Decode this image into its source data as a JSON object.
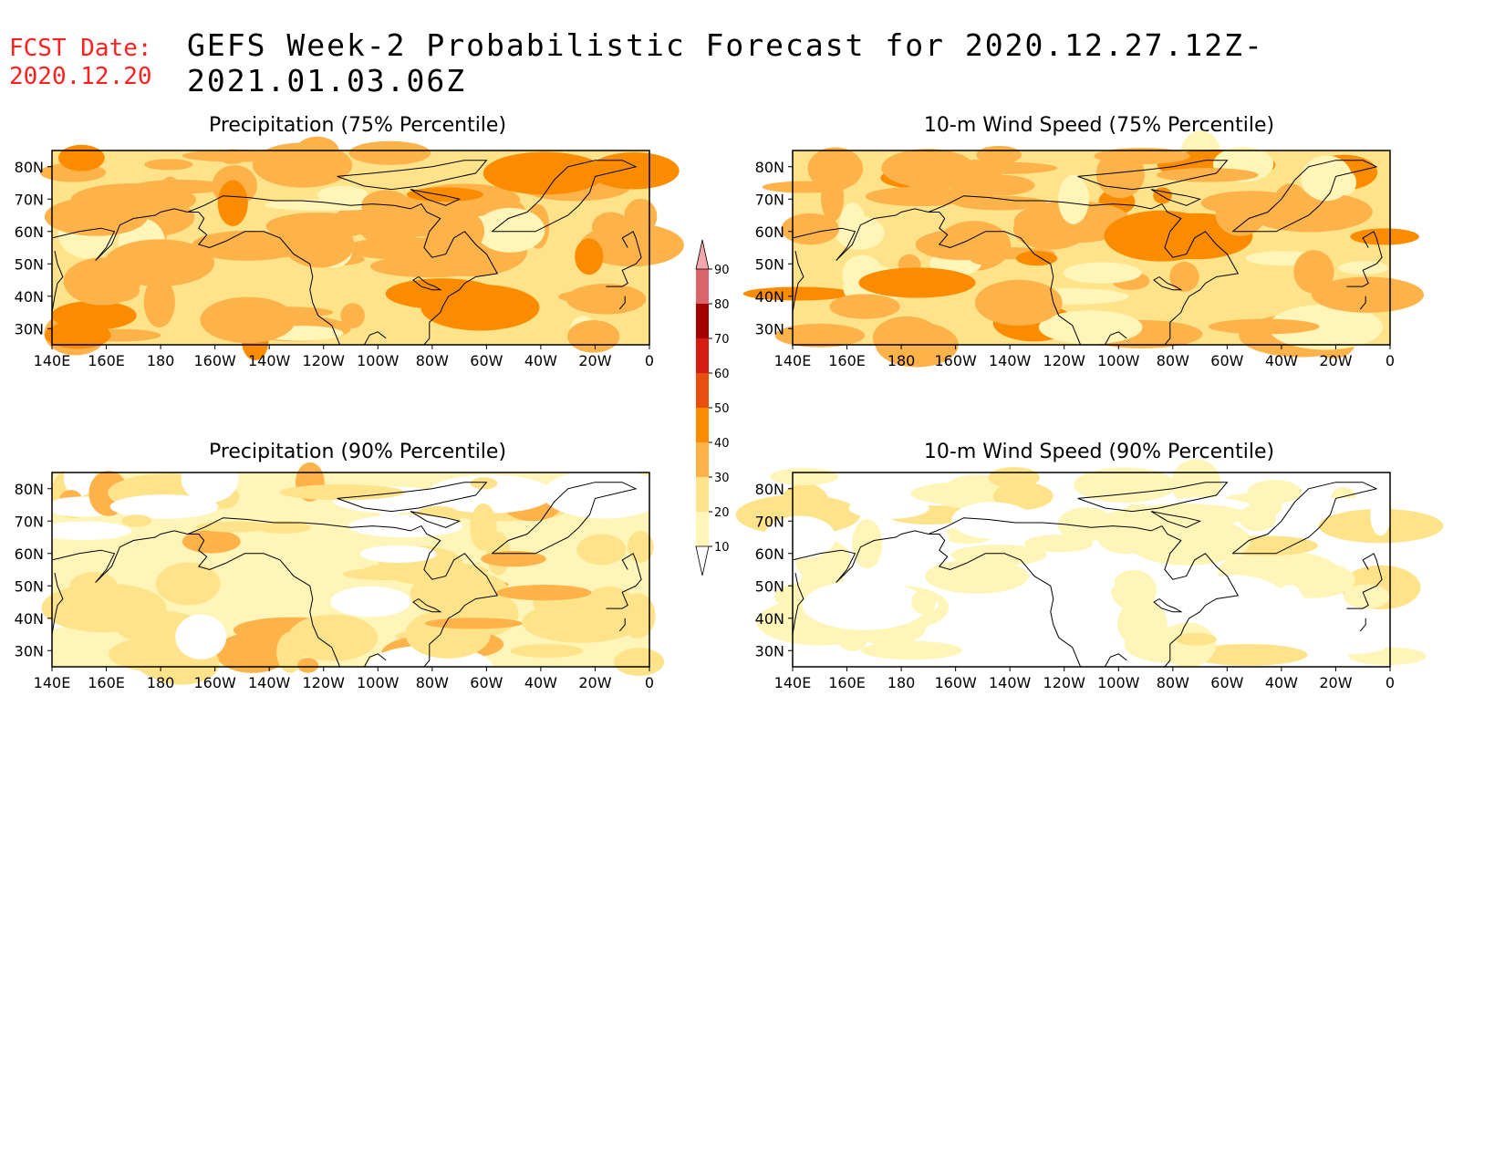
{
  "header": {
    "fcst_label": "FCST Date:",
    "fcst_date": "2020.12.20",
    "title": "GEFS Week-2 Probabilistic Forecast for 2020.12.27.12Z-2021.01.03.06Z"
  },
  "colors": {
    "fcst_text": "#ff2020",
    "levels": [
      "#ffffff",
      "#fff5b8",
      "#ffe38a",
      "#fdb24a",
      "#fb8c00",
      "#e84f0e",
      "#d41d10",
      "#a50000",
      "#d9646a",
      "#f5a8ab"
    ]
  },
  "axes": {
    "lon_ticks": [
      "140E",
      "160E",
      "180",
      "160W",
      "140W",
      "120W",
      "100W",
      "80W",
      "60W",
      "40W",
      "20W",
      "0"
    ],
    "lat_ticks": [
      "80N",
      "70N",
      "60N",
      "50N",
      "40N",
      "30N"
    ],
    "lon_range": [
      140,
      360
    ],
    "lat_range": [
      25,
      85
    ]
  },
  "colorbar": {
    "labels": [
      "10",
      "20",
      "30",
      "40",
      "50",
      "60",
      "70",
      "80",
      "90"
    ]
  },
  "panels": [
    {
      "id": "precip75",
      "title": "Precipitation (75% Percentile)",
      "base_level": 2
    },
    {
      "id": "wind75",
      "title": "10-m Wind Speed (75% Percentile)",
      "base_level": 2
    },
    {
      "id": "precip90",
      "title": "Precipitation (90% Percentile)",
      "base_level": 1
    },
    {
      "id": "wind90",
      "title": "10-m Wind Speed (90% Percentile)",
      "base_level": 0
    }
  ]
}
